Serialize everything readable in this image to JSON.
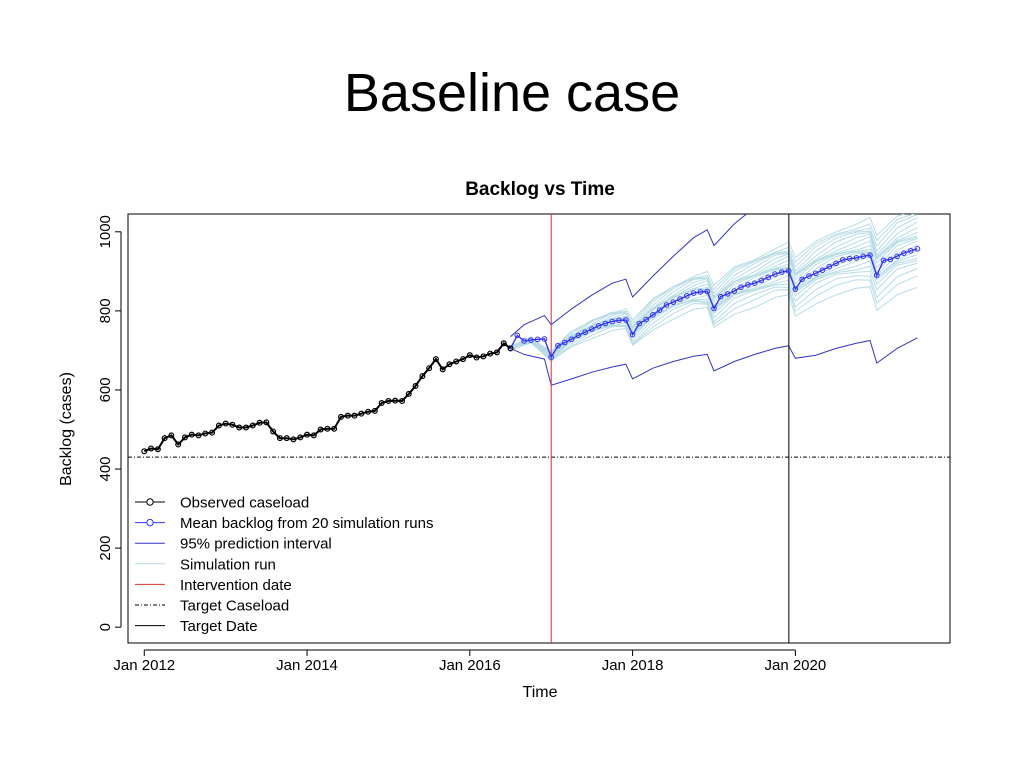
{
  "slide": {
    "title": "Baseline case"
  },
  "chart_data": {
    "type": "line",
    "title": "Backlog vs Time",
    "xlabel": "Time",
    "ylabel": "Backlog (cases)",
    "xlim": [
      2011.8,
      2021.9
    ],
    "ylim": [
      -40,
      1045
    ],
    "x_ticks": [
      {
        "value": 2012,
        "label": "Jan 2012"
      },
      {
        "value": 2014,
        "label": "Jan 2014"
      },
      {
        "value": 2016,
        "label": "Jan 2016"
      },
      {
        "value": 2018,
        "label": "Jan 2018"
      },
      {
        "value": 2020,
        "label": "Jan 2020"
      }
    ],
    "y_ticks": [
      {
        "value": 0,
        "label": "0"
      },
      {
        "value": 200,
        "label": "200"
      },
      {
        "value": 400,
        "label": "400"
      },
      {
        "value": 600,
        "label": "600"
      },
      {
        "value": 800,
        "label": "800"
      },
      {
        "value": 1000,
        "label": "1000"
      }
    ],
    "grid": false,
    "legend_position": "bottom-left",
    "legend": [
      {
        "label": "Observed caseload",
        "style": "line-circle",
        "color": "#000000"
      },
      {
        "label": "Mean backlog from 20 simulation runs",
        "style": "line-circle",
        "color": "#3333ff"
      },
      {
        "label": "95% prediction interval",
        "style": "line",
        "color": "#3333cc"
      },
      {
        "label": "Simulation run",
        "style": "line",
        "color": "#b7dce6"
      },
      {
        "label": "Intervention date",
        "style": "line",
        "color": "#e03030"
      },
      {
        "label": "Target Caseload",
        "style": "dashdot",
        "color": "#000000"
      },
      {
        "label": "Target Date",
        "style": "line",
        "color": "#000000"
      }
    ],
    "target_caseload": 430,
    "intervention_date": 2017.0,
    "target_date": 2019.92,
    "series": [
      {
        "name": "Observed caseload",
        "color": "#000000",
        "x": [
          2012.0,
          2012.083,
          2012.167,
          2012.25,
          2012.333,
          2012.417,
          2012.5,
          2012.583,
          2012.667,
          2012.75,
          2012.833,
          2012.917,
          2013.0,
          2013.083,
          2013.167,
          2013.25,
          2013.333,
          2013.417,
          2013.5,
          2013.583,
          2013.667,
          2013.75,
          2013.833,
          2013.917,
          2014.0,
          2014.083,
          2014.167,
          2014.25,
          2014.333,
          2014.417,
          2014.5,
          2014.583,
          2014.667,
          2014.75,
          2014.833,
          2014.917,
          2015.0,
          2015.083,
          2015.167,
          2015.25,
          2015.333,
          2015.417,
          2015.5,
          2015.583,
          2015.667,
          2015.75,
          2015.833,
          2015.917,
          2016.0,
          2016.083,
          2016.167,
          2016.25,
          2016.333,
          2016.417,
          2016.5
        ],
        "values": [
          445,
          452,
          450,
          478,
          485,
          462,
          480,
          487,
          485,
          490,
          492,
          510,
          515,
          512,
          505,
          505,
          510,
          517,
          518,
          495,
          478,
          478,
          475,
          480,
          487,
          485,
          500,
          502,
          502,
          532,
          535,
          535,
          540,
          545,
          547,
          567,
          572,
          573,
          572,
          590,
          610,
          635,
          655,
          678,
          652,
          665,
          672,
          678,
          688,
          682,
          685,
          692,
          695,
          718,
          705
        ]
      },
      {
        "name": "Mean backlog from 20 simulation runs",
        "color": "#3333ff",
        "x": [
          2016.5,
          2016.583,
          2016.667,
          2016.75,
          2016.833,
          2016.917,
          2017.0,
          2017.083,
          2017.167,
          2017.25,
          2017.333,
          2017.417,
          2017.5,
          2017.583,
          2017.667,
          2017.75,
          2017.833,
          2017.917,
          2018.0,
          2018.083,
          2018.167,
          2018.25,
          2018.333,
          2018.417,
          2018.5,
          2018.583,
          2018.667,
          2018.75,
          2018.833,
          2018.917,
          2019.0,
          2019.083,
          2019.167,
          2019.25,
          2019.333,
          2019.417,
          2019.5,
          2019.583,
          2019.667,
          2019.75,
          2019.833,
          2019.917,
          2020.0,
          2020.083,
          2020.167,
          2020.25,
          2020.333,
          2020.417,
          2020.5,
          2020.583,
          2020.667,
          2020.75,
          2020.833,
          2020.917,
          2021.0,
          2021.083,
          2021.167,
          2021.25,
          2021.333,
          2021.417,
          2021.5
        ],
        "values": [
          705,
          738,
          724,
          726,
          728,
          729,
          683,
          712,
          720,
          728,
          738,
          746,
          754,
          762,
          768,
          773,
          776,
          777,
          740,
          768,
          778,
          790,
          802,
          815,
          822,
          830,
          838,
          845,
          848,
          849,
          806,
          836,
          843,
          850,
          860,
          866,
          870,
          877,
          885,
          893,
          898,
          901,
          855,
          880,
          888,
          895,
          903,
          912,
          920,
          929,
          932,
          934,
          938,
          941,
          890,
          928,
          930,
          938,
          946,
          952,
          957
        ]
      },
      {
        "name": "95% prediction interval upper",
        "color": "#3333cc",
        "x": [
          2016.5,
          2016.667,
          2016.917,
          2017.0,
          2017.25,
          2017.5,
          2017.75,
          2017.917,
          2018.0,
          2018.25,
          2018.5,
          2018.75,
          2018.917,
          2019.0,
          2019.25,
          2019.4
        ],
        "values": [
          735,
          765,
          788,
          765,
          805,
          840,
          870,
          880,
          835,
          888,
          938,
          985,
          1005,
          965,
          1020,
          1045
        ]
      },
      {
        "name": "95% prediction interval lower",
        "color": "#3333cc",
        "x": [
          2016.5,
          2016.667,
          2016.917,
          2017.0,
          2017.25,
          2017.5,
          2017.75,
          2017.917,
          2018.0,
          2018.25,
          2018.5,
          2018.75,
          2018.917,
          2019.0,
          2019.25,
          2019.5,
          2019.75,
          2019.917,
          2020.0,
          2020.25,
          2020.5,
          2020.75,
          2020.917,
          2021.0,
          2021.25,
          2021.5
        ],
        "values": [
          705,
          690,
          678,
          612,
          628,
          645,
          658,
          665,
          628,
          655,
          672,
          685,
          690,
          648,
          672,
          690,
          705,
          712,
          680,
          688,
          705,
          718,
          725,
          668,
          705,
          732
        ]
      }
    ],
    "simulation_runs": {
      "color": "#b7dce6",
      "x": [
        2016.5,
        2016.75,
        2017.0,
        2017.25,
        2017.5,
        2017.75,
        2017.917,
        2018.0,
        2018.25,
        2018.5,
        2018.75,
        2018.917,
        2019.0,
        2019.25,
        2019.5,
        2019.75,
        2019.917,
        2020.0,
        2020.25,
        2020.5,
        2020.75,
        2020.917,
        2021.0,
        2021.25,
        2021.5
      ],
      "offsets": [
        -60,
        -45,
        -35,
        -25,
        -18,
        -12,
        -6,
        -2,
        4,
        9,
        14,
        19,
        24,
        29,
        34,
        40,
        46,
        52,
        58,
        66
      ]
    }
  }
}
